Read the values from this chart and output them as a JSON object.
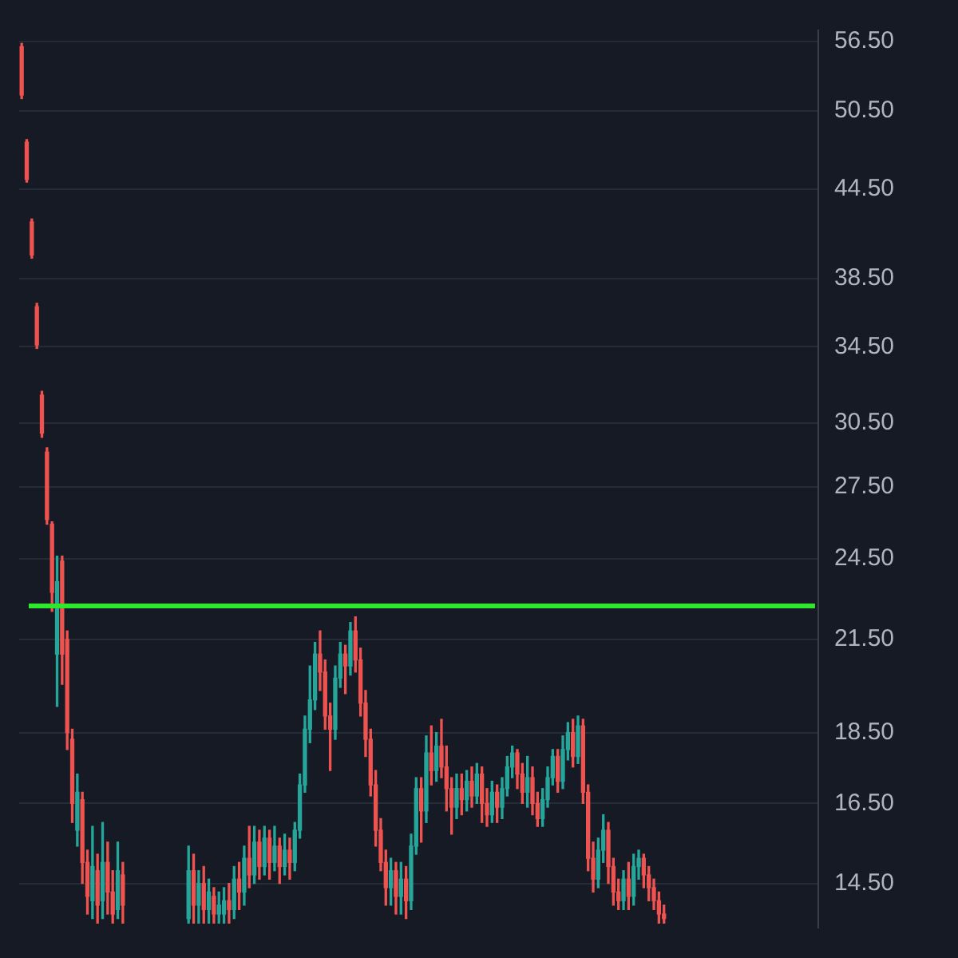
{
  "chart_data": {
    "type": "candlestick",
    "log": true,
    "grid": "y",
    "legend": false,
    "tick_labels": "y",
    "categories": [
      null,
      null,
      null,
      null,
      null,
      null,
      null,
      null,
      null,
      null,
      null,
      null,
      null,
      null,
      null,
      null,
      null,
      null,
      null,
      null,
      null,
      null,
      null,
      null,
      null,
      null,
      null,
      null,
      null,
      null,
      null,
      null,
      null,
      null,
      null,
      null,
      null,
      null,
      null,
      null,
      null,
      null,
      null,
      null,
      null,
      null,
      null,
      null,
      null,
      null,
      null,
      null,
      null,
      null,
      null,
      null,
      null,
      null,
      null,
      null,
      null,
      null,
      null,
      null,
      null,
      null,
      null,
      null,
      null,
      null,
      null,
      null,
      null,
      null,
      null,
      null,
      null,
      null,
      null,
      null,
      null,
      null,
      null,
      null,
      null,
      null,
      null,
      null,
      null,
      null,
      null,
      null,
      null,
      null,
      null,
      null,
      null,
      null,
      null,
      null,
      null,
      null,
      null,
      null,
      null,
      null,
      null,
      null,
      null,
      null,
      null,
      null,
      null,
      null,
      null,
      null,
      null,
      null,
      null,
      null,
      null,
      null,
      null,
      null,
      null,
      null,
      null,
      null,
      null,
      null,
      null,
      null,
      null,
      null,
      null,
      null,
      null,
      null,
      null,
      null,
      null,
      null,
      null,
      null,
      null,
      null,
      null,
      null,
      null,
      null,
      null,
      null,
      null,
      null,
      null,
      null,
      null,
      null
    ],
    "ohlc": [
      [
        56.0,
        56.3,
        51.5,
        51.8
      ],
      [
        48.0,
        48.2,
        45.0,
        45.2
      ],
      [
        42.2,
        42.4,
        39.8,
        40.0
      ],
      [
        36.8,
        37.0,
        34.4,
        34.6
      ],
      [
        31.9,
        32.1,
        29.8,
        30.0
      ],
      [
        29.1,
        29.3,
        25.9,
        26.1
      ],
      [
        25.9,
        26.0,
        22.5,
        23.2
      ],
      [
        21.0,
        24.6,
        19.3,
        23.6
      ],
      [
        24.4,
        24.6,
        20.0,
        21.0
      ],
      [
        21.5,
        21.8,
        18.0,
        18.5
      ],
      [
        18.3,
        18.6,
        16.0,
        16.5
      ],
      [
        15.8,
        17.3,
        15.4,
        16.8
      ],
      [
        16.6,
        16.8,
        14.5,
        15.0
      ],
      [
        15.0,
        15.3,
        13.8,
        14.2
      ],
      [
        14.1,
        15.9,
        13.7,
        14.9
      ],
      [
        14.8,
        15.2,
        13.6,
        14.0
      ],
      [
        14.1,
        16.0,
        13.7,
        15.0
      ],
      [
        15.0,
        15.5,
        13.8,
        14.3
      ],
      [
        14.3,
        14.8,
        13.6,
        13.8
      ],
      [
        13.9,
        15.5,
        13.7,
        14.8
      ],
      [
        14.7,
        15.0,
        13.6,
        14.0
      ],
      null,
      null,
      null,
      null,
      null,
      null,
      null,
      null,
      null,
      null,
      null,
      null,
      [
        13.7,
        15.4,
        13.6,
        14.8
      ],
      [
        14.8,
        15.2,
        13.6,
        14.0
      ],
      [
        14.0,
        14.8,
        13.6,
        14.5
      ],
      [
        14.5,
        14.9,
        13.6,
        13.9
      ],
      [
        13.9,
        14.6,
        13.6,
        14.3
      ],
      [
        14.2,
        14.4,
        13.6,
        13.8
      ],
      [
        13.8,
        14.3,
        13.6,
        14.0
      ],
      [
        13.8,
        14.4,
        13.6,
        14.1
      ],
      [
        14.1,
        14.5,
        13.6,
        13.9
      ],
      [
        13.9,
        14.9,
        13.7,
        14.6
      ],
      [
        14.6,
        15.0,
        13.9,
        14.3
      ],
      [
        14.3,
        15.4,
        14.0,
        15.1
      ],
      [
        15.1,
        15.9,
        14.4,
        14.7
      ],
      [
        14.7,
        15.9,
        14.5,
        15.5
      ],
      [
        15.5,
        15.8,
        14.6,
        14.9
      ],
      [
        14.9,
        15.9,
        14.7,
        15.6
      ],
      [
        15.6,
        15.8,
        14.6,
        15.0
      ],
      [
        15.0,
        15.9,
        14.8,
        15.4
      ],
      [
        15.4,
        15.6,
        14.5,
        14.9
      ],
      [
        14.9,
        15.7,
        14.7,
        15.3
      ],
      [
        15.3,
        15.6,
        14.6,
        15.0
      ],
      [
        15.0,
        16.0,
        14.8,
        15.8
      ],
      [
        15.8,
        17.3,
        15.6,
        17.0
      ],
      [
        17.0,
        19.0,
        16.8,
        18.6
      ],
      [
        18.6,
        20.6,
        18.2,
        19.5
      ],
      [
        19.5,
        21.4,
        19.2,
        21.0
      ],
      [
        21.0,
        21.8,
        19.8,
        20.4
      ],
      [
        20.4,
        20.8,
        18.6,
        19.0
      ],
      [
        19.0,
        19.4,
        17.4,
        18.6
      ],
      [
        18.6,
        20.6,
        18.3,
        20.2
      ],
      [
        20.2,
        21.4,
        19.9,
        21.0
      ],
      [
        21.0,
        21.3,
        19.7,
        20.6
      ],
      [
        20.6,
        22.1,
        20.3,
        21.8
      ],
      [
        21.8,
        22.3,
        20.4,
        20.8
      ],
      [
        20.8,
        21.2,
        19.0,
        19.4
      ],
      [
        19.4,
        19.8,
        17.8,
        18.3
      ],
      [
        18.3,
        18.6,
        16.7,
        17.0
      ],
      [
        17.0,
        17.4,
        15.4,
        15.8
      ],
      [
        15.8,
        16.1,
        14.8,
        15.0
      ],
      [
        15.0,
        15.3,
        14.0,
        14.4
      ],
      [
        14.4,
        15.1,
        14.0,
        14.8
      ],
      [
        14.8,
        15.0,
        13.8,
        14.2
      ],
      [
        14.2,
        15.0,
        13.8,
        14.6
      ],
      [
        14.6,
        14.9,
        13.7,
        14.1
      ],
      [
        14.1,
        15.7,
        13.9,
        15.4
      ],
      [
        15.4,
        17.2,
        15.2,
        16.9
      ],
      [
        16.9,
        17.2,
        15.5,
        16.3
      ],
      [
        16.3,
        18.4,
        16.0,
        17.9
      ],
      [
        17.9,
        18.7,
        17.0,
        17.4
      ],
      [
        17.4,
        18.5,
        17.1,
        18.1
      ],
      [
        18.1,
        18.9,
        17.2,
        17.5
      ],
      [
        17.5,
        18.1,
        16.3,
        16.9
      ],
      [
        16.9,
        17.2,
        15.7,
        16.4
      ],
      [
        16.4,
        17.3,
        16.1,
        16.9
      ],
      [
        16.9,
        17.3,
        16.2,
        16.6
      ],
      [
        16.6,
        17.4,
        16.3,
        17.1
      ],
      [
        17.1,
        17.5,
        16.4,
        16.7
      ],
      [
        16.7,
        17.6,
        16.5,
        17.3
      ],
      [
        17.3,
        17.5,
        16.0,
        16.5
      ],
      [
        16.5,
        16.9,
        15.9,
        16.2
      ],
      [
        16.2,
        17.1,
        16.0,
        16.8
      ],
      [
        16.8,
        17.0,
        16.0,
        16.4
      ],
      [
        16.4,
        17.2,
        16.1,
        16.9
      ],
      [
        16.9,
        17.8,
        16.7,
        17.5
      ],
      [
        17.5,
        18.1,
        17.2,
        17.9
      ],
      [
        17.9,
        18.0,
        16.9,
        17.3
      ],
      [
        17.3,
        17.6,
        16.5,
        16.8
      ],
      [
        16.8,
        17.8,
        16.4,
        17.2
      ],
      [
        17.2,
        17.5,
        16.2,
        16.5
      ],
      [
        16.5,
        16.8,
        15.9,
        16.1
      ],
      [
        16.1,
        16.9,
        15.9,
        16.6
      ],
      [
        16.6,
        17.5,
        16.4,
        17.2
      ],
      [
        17.2,
        18.0,
        17.0,
        17.8
      ],
      [
        17.8,
        18.0,
        16.8,
        17.1
      ],
      [
        17.1,
        18.4,
        16.9,
        18.0
      ],
      [
        18.0,
        18.8,
        17.7,
        18.5
      ],
      [
        18.5,
        18.9,
        17.5,
        17.8
      ],
      [
        17.8,
        19.0,
        17.6,
        18.7
      ],
      [
        18.7,
        18.9,
        16.5,
        16.8
      ],
      [
        16.8,
        17.0,
        14.8,
        15.1
      ],
      [
        15.1,
        15.5,
        14.3,
        14.6
      ],
      [
        14.6,
        15.6,
        14.4,
        15.3
      ],
      [
        15.3,
        16.2,
        15.0,
        15.8
      ],
      [
        15.8,
        16.0,
        14.5,
        14.9
      ],
      [
        14.9,
        15.1,
        14.0,
        14.3
      ],
      [
        14.3,
        14.6,
        13.9,
        14.1
      ],
      [
        14.1,
        14.8,
        13.9,
        14.6
      ],
      [
        14.6,
        15.0,
        13.9,
        14.2
      ],
      [
        14.2,
        15.2,
        14.0,
        14.9
      ],
      [
        14.9,
        15.3,
        14.6,
        15.1
      ],
      [
        15.1,
        15.2,
        14.4,
        14.7
      ],
      [
        14.7,
        14.9,
        14.1,
        14.4
      ],
      [
        14.4,
        14.6,
        13.9,
        14.1
      ],
      [
        14.1,
        14.3,
        13.6,
        13.8
      ],
      [
        13.8,
        14.0,
        13.6,
        13.7
      ],
      null,
      null,
      null,
      null,
      null,
      null,
      null,
      null,
      null,
      null,
      null,
      null,
      null,
      null,
      null,
      null,
      null,
      null,
      null,
      null,
      null,
      null,
      null,
      null,
      null,
      null,
      null,
      null,
      null,
      null
    ],
    "colors": [
      "#ef5350",
      "#ef5350",
      "#ef5350",
      "#ef5350",
      "#ef5350",
      "#ef5350",
      "#ef5350",
      "#26a69a",
      "#ef5350",
      "#ef5350",
      "#ef5350",
      "#26a69a",
      "#ef5350",
      "#ef5350",
      "#26a69a",
      "#ef5350",
      "#26a69a",
      "#ef5350",
      "#ef5350",
      "#26a69a",
      "#ef5350",
      null,
      null,
      null,
      null,
      null,
      null,
      null,
      null,
      null,
      null,
      null,
      null,
      "#26a69a",
      "#ef5350",
      "#26a69a",
      "#ef5350",
      "#26a69a",
      "#ef5350",
      "#26a69a",
      "#26a69a",
      "#ef5350",
      "#26a69a",
      "#ef5350",
      "#26a69a",
      "#ef5350",
      "#26a69a",
      "#ef5350",
      "#26a69a",
      "#ef5350",
      "#26a69a",
      "#ef5350",
      "#26a69a",
      "#ef5350",
      "#26a69a",
      "#26a69a",
      "#26a69a",
      "#26a69a",
      "#26a69a",
      "#ef5350",
      "#ef5350",
      "#ef5350",
      "#26a69a",
      "#26a69a",
      "#ef5350",
      "#26a69a",
      "#ef5350",
      "#ef5350",
      "#ef5350",
      "#ef5350",
      "#ef5350",
      "#ef5350",
      "#ef5350",
      "#26a69a",
      "#ef5350",
      "#26a69a",
      "#ef5350",
      "#26a69a",
      "#26a69a",
      "#ef5350",
      "#26a69a",
      "#ef5350",
      "#26a69a",
      "#ef5350",
      "#ef5350",
      "#ef5350",
      "#26a69a",
      "#ef5350",
      "#26a69a",
      "#ef5350",
      "#26a69a",
      "#ef5350",
      "#ef5350",
      "#26a69a",
      "#ef5350",
      "#26a69a",
      "#26a69a",
      "#26a69a",
      "#ef5350",
      "#ef5350",
      "#26a69a",
      "#ef5350",
      "#ef5350",
      "#26a69a",
      "#26a69a",
      "#26a69a",
      "#ef5350",
      "#26a69a",
      "#26a69a",
      "#ef5350",
      "#26a69a",
      "#ef5350",
      "#ef5350",
      "#ef5350",
      "#26a69a",
      "#26a69a",
      "#ef5350",
      "#ef5350",
      "#ef5350",
      "#26a69a",
      "#ef5350",
      "#26a69a",
      "#26a69a",
      "#ef5350",
      "#ef5350",
      "#ef5350",
      "#ef5350",
      "#ef5350",
      null,
      null,
      null,
      null,
      null,
      null,
      null,
      null,
      null,
      null,
      null,
      null,
      null,
      null,
      null,
      null,
      null,
      null,
      null,
      null,
      null,
      null,
      null,
      null,
      null,
      null,
      null,
      null,
      null,
      null
    ],
    "ylim": [
      13.5,
      57.5
    ],
    "yticks": [
      {
        "value": 14.5,
        "label": "14.50"
      },
      {
        "value": 16.5,
        "label": "16.50"
      },
      {
        "value": 18.5,
        "label": "18.50"
      },
      {
        "value": 21.5,
        "label": "21.50"
      },
      {
        "value": 24.5,
        "label": "24.50"
      },
      {
        "value": 27.5,
        "label": "27.50"
      },
      {
        "value": 30.5,
        "label": "30.50"
      },
      {
        "value": 34.5,
        "label": "34.50"
      },
      {
        "value": 38.5,
        "label": "38.50"
      },
      {
        "value": 44.5,
        "label": "44.50"
      },
      {
        "value": 50.5,
        "label": "50.50"
      },
      {
        "value": 56.5,
        "label": "56.50"
      }
    ],
    "ref_lines": [
      {
        "axis": "y",
        "value": 22.7,
        "color": "#2ee82e"
      }
    ]
  }
}
